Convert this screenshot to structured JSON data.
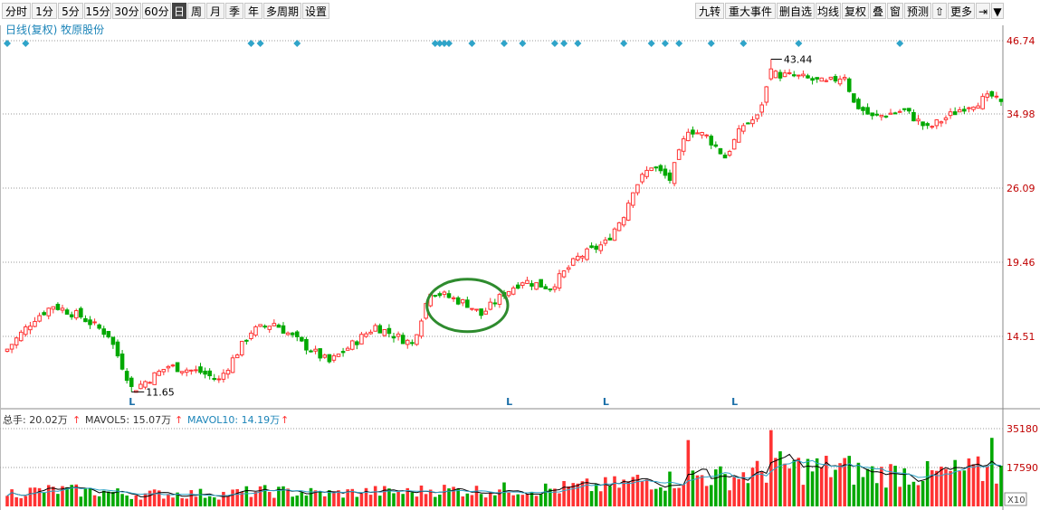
{
  "toolbar": {
    "left_items": [
      "分时",
      "1分",
      "5分",
      "15分",
      "30分",
      "60分",
      "日",
      "周",
      "月",
      "季",
      "年",
      "多周期",
      "设置"
    ],
    "active_item": "日",
    "right_items": [
      "九转",
      "重大事件",
      "删自选",
      "均线",
      "复权",
      "叠",
      "窗",
      "预测",
      "⇧",
      "更多",
      "⇥",
      "▼"
    ]
  },
  "header": {
    "label": "日线(复权) 牧原股份"
  },
  "colors": {
    "up": "#ff3232",
    "down": "#00a800",
    "grid": "#9a9a9a",
    "axis_text": "#c00000",
    "marker": "#2fa4c9",
    "circle": "#2e8b2e",
    "ma5": "#000000",
    "ma10": "#2fa4c9",
    "signal_L": "#1b6fa8"
  },
  "chart_data": {
    "type": "candlestick",
    "price_axis": {
      "scale": "log",
      "ticks": [
        "46.74",
        "34.98",
        "26.09",
        "19.46",
        "14.51"
      ],
      "range": [
        10.6,
        49.5
      ]
    },
    "annotations": {
      "low": "11.65",
      "high": "43.44"
    },
    "signals": [
      {
        "label": "L",
        "index": 27
      },
      {
        "label": "L",
        "index": 109
      },
      {
        "label": "L",
        "index": 130
      },
      {
        "label": "L",
        "index": 158
      },
      {
        "label": "L",
        "index": 233
      }
    ],
    "event_markers": [
      0,
      4,
      53,
      55,
      63,
      93,
      94,
      95,
      96,
      101,
      108,
      112,
      119,
      121,
      124,
      134,
      140,
      143,
      146,
      153,
      160,
      172,
      194
    ],
    "highlight_circle_indices": [
      92,
      108
    ],
    "volume": {
      "summary": {
        "total_label": "总手: 20.02万",
        "ma5_label": "MAVOL5: 15.07万",
        "ma10_label": "MAVOL10: 14.19万"
      },
      "ticks": [
        "35180",
        "17590"
      ],
      "unit": "X10"
    },
    "keypoints": [
      [
        0,
        13.8
      ],
      [
        6,
        15.6
      ],
      [
        10,
        16.4
      ],
      [
        16,
        15.7
      ],
      [
        22,
        14.6
      ],
      [
        26,
        12.4
      ],
      [
        27,
        11.7
      ],
      [
        35,
        12.9
      ],
      [
        42,
        12.6
      ],
      [
        46,
        12.2
      ],
      [
        53,
        14.8
      ],
      [
        58,
        15.3
      ],
      [
        64,
        14.1
      ],
      [
        70,
        13.1
      ],
      [
        80,
        15.1
      ],
      [
        88,
        14.1
      ],
      [
        92,
        17.4
      ],
      [
        100,
        16.5
      ],
      [
        103,
        15.8
      ],
      [
        108,
        17.2
      ],
      [
        112,
        18.1
      ],
      [
        118,
        17.6
      ],
      [
        124,
        19.8
      ],
      [
        130,
        21.0
      ],
      [
        134,
        23.5
      ],
      [
        136,
        26.0
      ],
      [
        140,
        28.5
      ],
      [
        144,
        27.0
      ],
      [
        148,
        33.0
      ],
      [
        152,
        32.0
      ],
      [
        156,
        29.5
      ],
      [
        160,
        33.5
      ],
      [
        163,
        34.5
      ],
      [
        166,
        41.0
      ],
      [
        172,
        40.5
      ],
      [
        178,
        39.5
      ],
      [
        182,
        40.8
      ],
      [
        184,
        36.5
      ],
      [
        188,
        34.5
      ],
      [
        195,
        35.5
      ],
      [
        200,
        33.0
      ],
      [
        208,
        36.0
      ],
      [
        214,
        37.5
      ],
      [
        216,
        36.3
      ]
    ]
  }
}
